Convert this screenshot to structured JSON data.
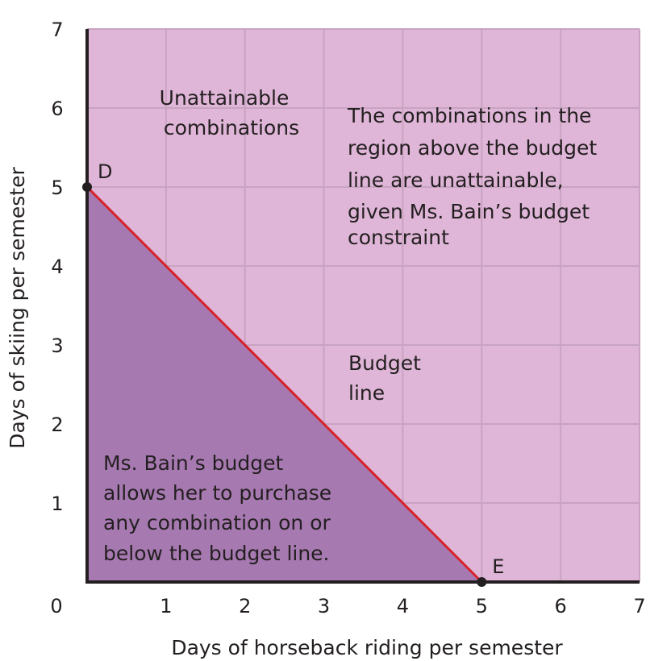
{
  "chart_data": {
    "type": "line",
    "xlabel": "Days of horseback riding per semester",
    "ylabel": "Days of skiing per semester",
    "xlim": [
      0,
      7
    ],
    "ylim": [
      0,
      7
    ],
    "x_ticks": [
      "0",
      "1",
      "2",
      "3",
      "4",
      "5",
      "6",
      "7"
    ],
    "y_ticks": [
      "1",
      "2",
      "3",
      "4",
      "5",
      "6",
      "7"
    ],
    "grid": true,
    "series": [
      {
        "values": [
          {
            "x": 0,
            "y": 5
          },
          {
            "x": 5,
            "y": 0
          }
        ]
      }
    ],
    "points": [
      {
        "label": "D",
        "x": 0,
        "y": 5
      },
      {
        "label": "E",
        "x": 5,
        "y": 0
      }
    ],
    "regions": {
      "unattainable_label": [
        "Unattainable",
        "combinations"
      ],
      "unattainable_note": [
        "The combinations in the",
        "region above the budget",
        "line are unattainable,",
        "given Ms. Bain’s budget",
        "constraint"
      ],
      "budget_line_label": [
        "Budget",
        "line"
      ],
      "attainable_note": [
        "Ms. Bain’s budget",
        "allows her to purchase",
        "any combination on or",
        "below the budget line."
      ]
    },
    "colors": {
      "unattainable_fill": "#dfb6d7",
      "attainable_fill": "#a779b1",
      "budget_line": "#d7222b",
      "grid": "#c9a3c2",
      "axis": "#231f20",
      "point": "#231f20"
    }
  }
}
